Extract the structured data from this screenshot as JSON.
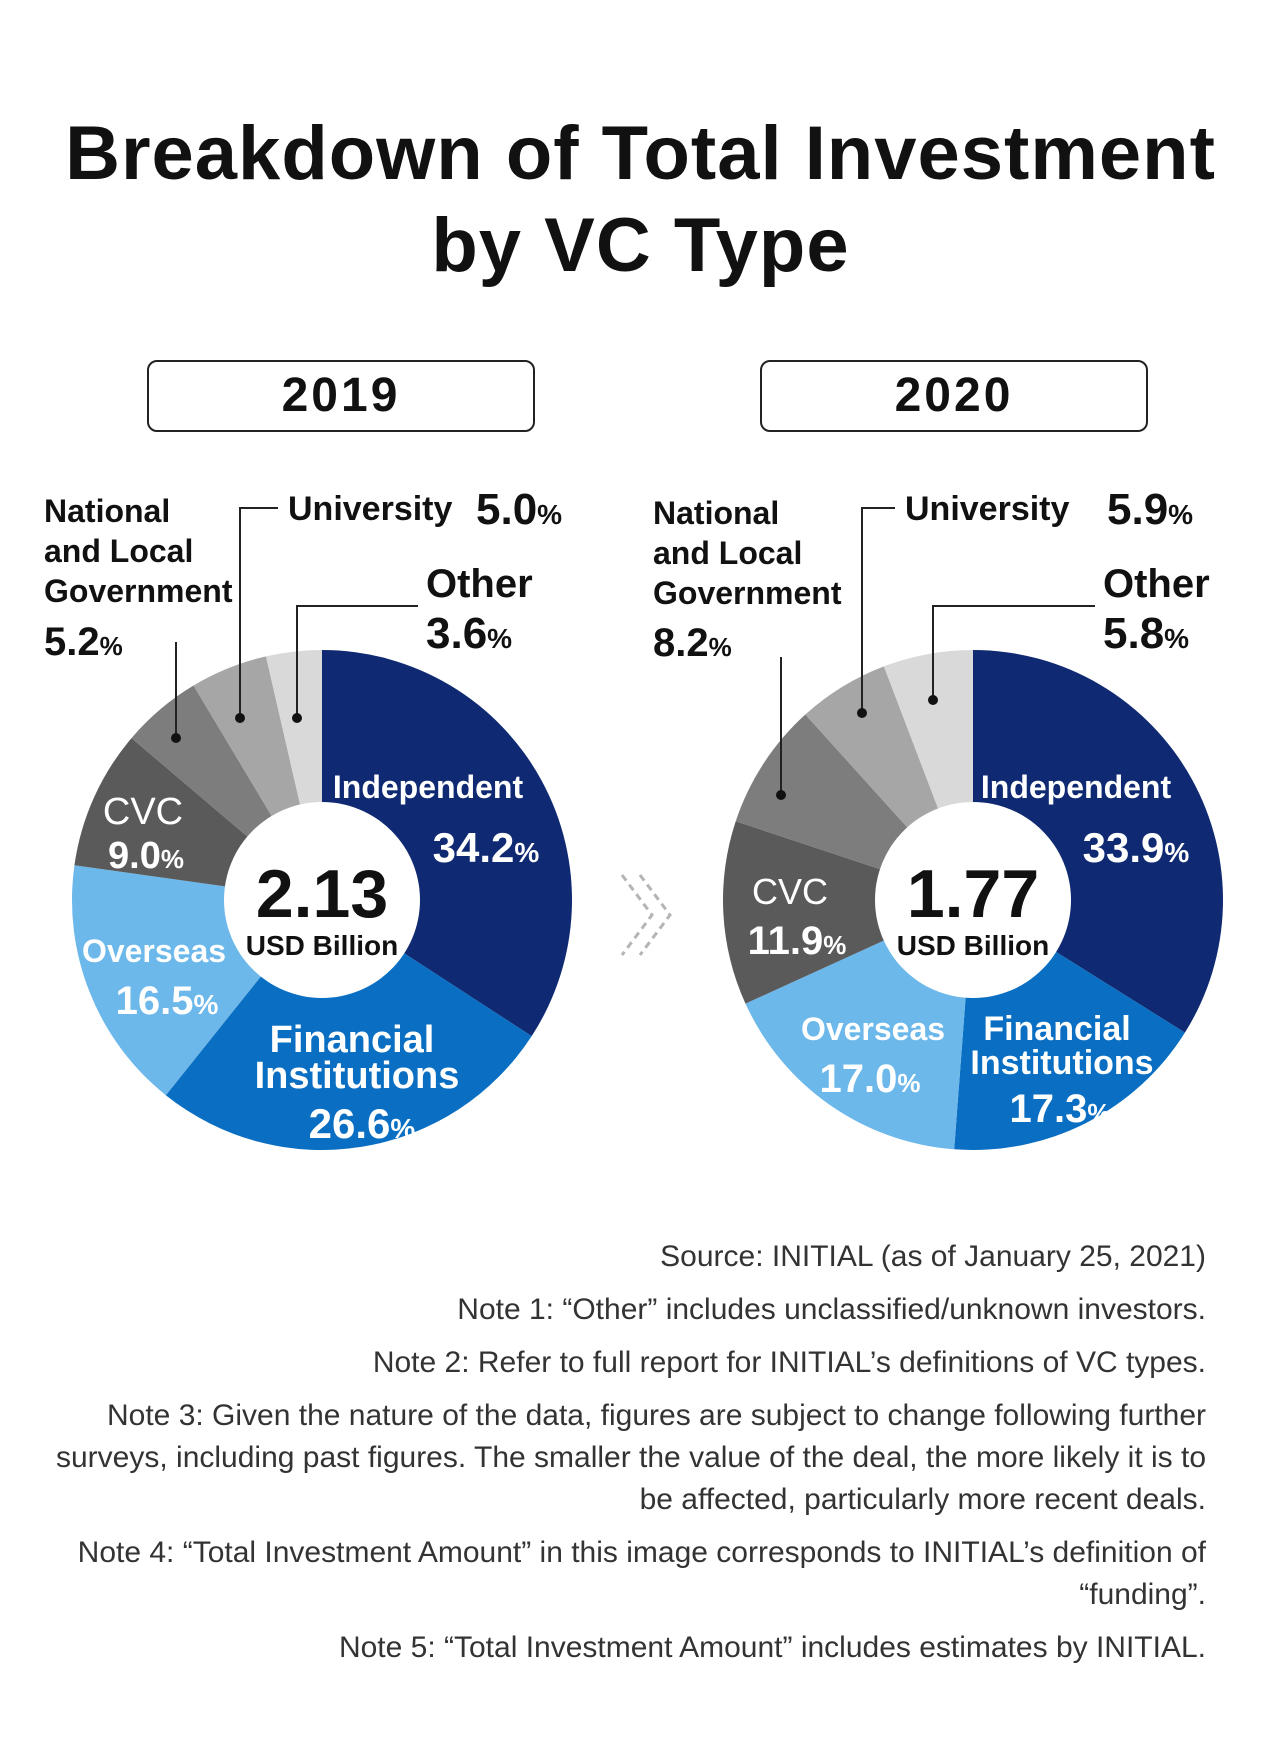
{
  "title_line1": "Breakdown of Total Investment",
  "title_line2": "by VC Type",
  "chart_data": [
    {
      "type": "pie",
      "year": "2019",
      "center_value": "2.13",
      "center_unit": "USD Billion",
      "slices": [
        {
          "label": "Independent",
          "value": 34.2,
          "value_text": "34.2",
          "color": "#0f2a72"
        },
        {
          "label": "Financial Institutions",
          "value": 26.6,
          "value_text": "26.6",
          "color": "#0a6fc2"
        },
        {
          "label": "Overseas",
          "value": 16.5,
          "value_text": "16.5",
          "color": "#6cb8ea"
        },
        {
          "label": "CVC",
          "value": 9.0,
          "value_text": "9.0",
          "color": "#5a5a5a"
        },
        {
          "label": "National and Local Government",
          "value": 5.2,
          "value_text": "5.2",
          "color": "#7d7d7d"
        },
        {
          "label": "University",
          "value": 5.0,
          "value_text": "5.0",
          "color": "#a6a6a6"
        },
        {
          "label": "Other",
          "value": 3.6,
          "value_text": "3.6",
          "color": "#d9d9d9"
        }
      ]
    },
    {
      "type": "pie",
      "year": "2020",
      "center_value": "1.77",
      "center_unit": "USD Billion",
      "slices": [
        {
          "label": "Independent",
          "value": 33.9,
          "value_text": "33.9",
          "color": "#0f2a72"
        },
        {
          "label": "Financial Institutions",
          "value": 17.3,
          "value_text": "17.3",
          "color": "#0a6fc2"
        },
        {
          "label": "Overseas",
          "value": 17.0,
          "value_text": "17.0",
          "color": "#6cb8ea"
        },
        {
          "label": "CVC",
          "value": 11.9,
          "value_text": "11.9",
          "color": "#5a5a5a"
        },
        {
          "label": "National and Local Government",
          "value": 8.2,
          "value_text": "8.2",
          "color": "#7d7d7d"
        },
        {
          "label": "University",
          "value": 5.9,
          "value_text": "5.9",
          "color": "#a6a6a6"
        },
        {
          "label": "Other",
          "value": 5.8,
          "value_text": "5.8",
          "color": "#d9d9d9"
        }
      ]
    }
  ],
  "labels": {
    "percent_sign": "%",
    "independent": "Independent",
    "financial_line1": "Financial",
    "financial_line2": "Institutions",
    "overseas": "Overseas",
    "cvc": "CVC",
    "gov_line1": "National",
    "gov_line2": "and Local",
    "gov_line3": "Government",
    "university": "University",
    "other": "Other"
  },
  "notes": [
    "Source: INITIAL (as of January 25, 2021)",
    "Note 1: “Other” includes unclassified/unknown investors.",
    "Note 2: Refer to full report for INITIAL’s definitions of VC types.",
    "Note 3: Given the nature of the data, figures are subject to change following further surveys, including past figures. The smaller the value of the deal, the more likely it is to be affected, particularly more recent deals.",
    "Note 4: “Total Investment Amount” in this image corresponds to INITIAL’s definition of “funding”.",
    "Note 5: “Total Investment Amount” includes estimates by INITIAL."
  ]
}
